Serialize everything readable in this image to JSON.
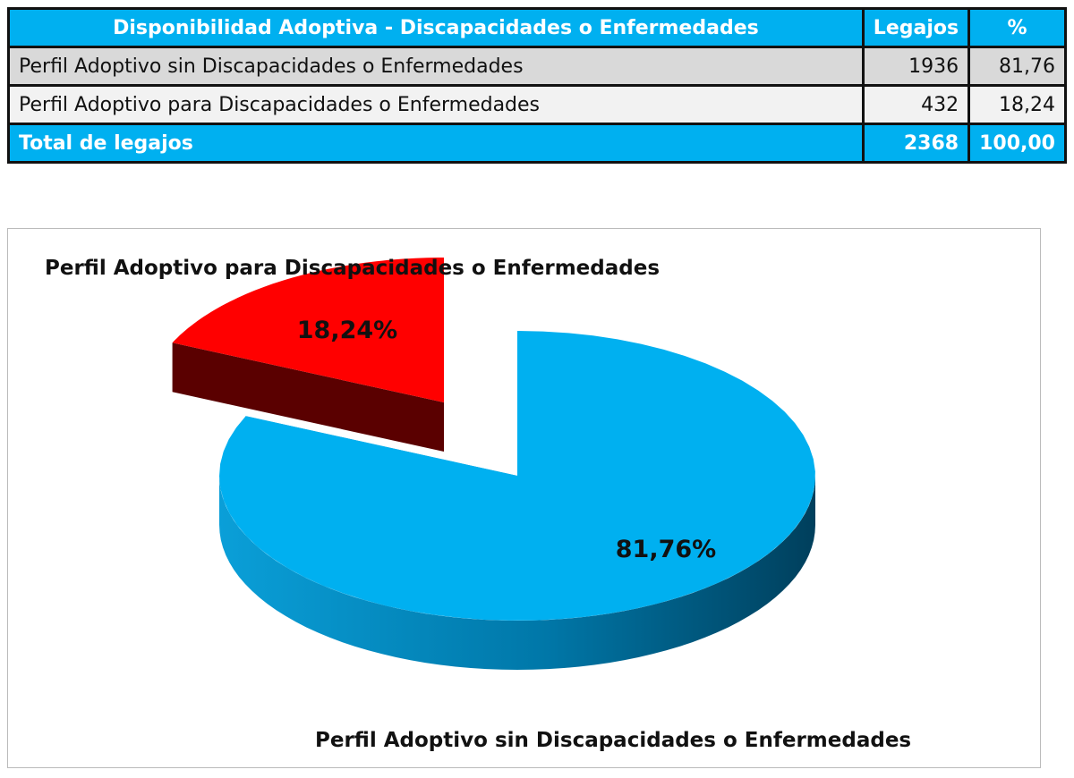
{
  "table": {
    "header": [
      "Disponibilidad Adoptiva -  Discapacidades o Enfermedades",
      "Legajos",
      "%"
    ],
    "rows": [
      [
        "Perfil Adoptivo sin Discapacidades o Enfermedades",
        "1936",
        "81,76"
      ],
      [
        "Perfil Adoptivo para Discapacidades o Enfermedades",
        "432",
        "18,24"
      ]
    ],
    "total": [
      "Total de legajos",
      "2368",
      "100,00"
    ]
  },
  "chart_data": {
    "type": "pie",
    "categories": [
      "Perfil Adoptivo sin Discapacidades o Enfermedades",
      "Perfil Adoptivo para Discapacidades o Enfermedades"
    ],
    "values": [
      81.76,
      18.24
    ],
    "labels": [
      "81,76%",
      "18,24%"
    ],
    "colors": [
      "#00b0f0",
      "#ff0000"
    ],
    "style": "3d exploded"
  }
}
